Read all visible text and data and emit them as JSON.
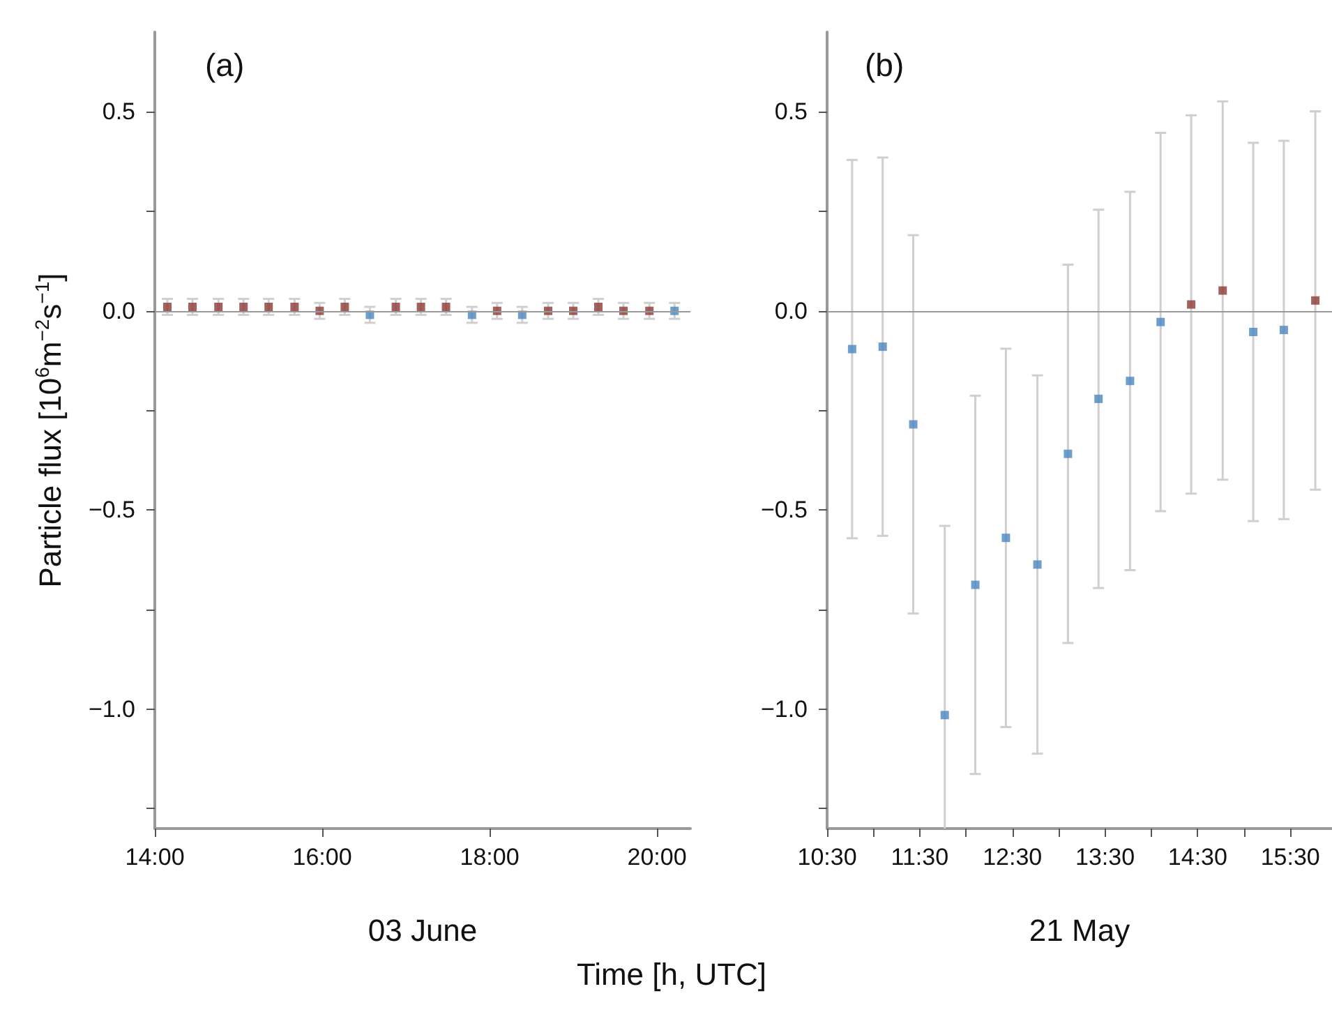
{
  "chart_data": [
    {
      "type": "scatter",
      "title": "(a)",
      "xlabel": "03 June",
      "ylabel": "Particle flux [10$^{6}$m$^{−2}$s$^{−1}$]",
      "series": [
        {
          "color": "#8b3a34",
          "x": [
            14.15,
            14.45,
            14.76,
            15.06,
            15.36,
            15.67,
            15.97,
            16.27,
            16.88,
            17.18,
            17.48,
            18.09,
            18.7,
            19.0,
            19.3,
            19.6,
            19.91
          ],
          "values": [
            0.01,
            0.01,
            0.01,
            0.01,
            0.01,
            0.01,
            0.0,
            0.01,
            0.01,
            0.01,
            0.01,
            0.0,
            0.0,
            0.0,
            0.01,
            0.0,
            0.0
          ],
          "errors": [
            0.02,
            0.02,
            0.02,
            0.02,
            0.02,
            0.02,
            0.02,
            0.02,
            0.02,
            0.02,
            0.02,
            0.02,
            0.02,
            0.02,
            0.02,
            0.02,
            0.02
          ]
        },
        {
          "color": "#4a86bf",
          "x": [
            16.57,
            17.79,
            18.39,
            20.21
          ],
          "values": [
            -0.01,
            -0.01,
            -0.01,
            0.0
          ],
          "errors": [
            0.02,
            0.02,
            0.02,
            0.02
          ]
        }
      ],
      "xlim": [
        14,
        20.4
      ],
      "xticks": [
        {
          "value": 14,
          "label": "14:00"
        },
        {
          "value": 16,
          "label": "16:00"
        },
        {
          "value": 18,
          "label": "18:00"
        },
        {
          "value": 20,
          "label": "20:00"
        }
      ],
      "ylim": [
        -1.3,
        0.7
      ],
      "yticks": [
        {
          "value": -1.25,
          "label": null
        },
        {
          "value": -1,
          "label": "−1.0"
        },
        {
          "value": -0.75,
          "label": null
        },
        {
          "value": -0.5,
          "label": "−0.5"
        },
        {
          "value": -0.25,
          "label": null
        },
        {
          "value": 0,
          "label": "0.0"
        },
        {
          "value": 0.25,
          "label": null
        },
        {
          "value": 0.5,
          "label": "0.5"
        }
      ],
      "ref_lines": [
        {
          "axis": "y",
          "value": 0,
          "color": "#999999"
        }
      ],
      "annotations": [
        "Time [h, UTC]"
      ],
      "marker": "square",
      "grid": false
    },
    {
      "type": "scatter",
      "title": "(b)",
      "xlabel": "21 May",
      "series": [
        {
          "color": "#4a86bf",
          "x": [
            10.77,
            11.1,
            11.43,
            11.77,
            12.1,
            12.43,
            12.77,
            13.1,
            13.43,
            13.77,
            14.1,
            15.1,
            15.43
          ],
          "values": [
            -0.096,
            -0.09,
            -0.285,
            -1.015,
            -0.688,
            -0.57,
            -0.637,
            -0.359,
            -0.221,
            -0.176,
            -0.028,
            -0.053,
            -0.048
          ],
          "errors": [
            0.475,
            0.475,
            0.475,
            0.475,
            0.475,
            0.475,
            0.475,
            0.475,
            0.475,
            0.475,
            0.475,
            0.475,
            0.475
          ]
        },
        {
          "color": "#8b3a34",
          "x": [
            14.43,
            14.77,
            15.77
          ],
          "values": [
            0.016,
            0.051,
            0.026
          ],
          "errors": [
            0.475,
            0.475,
            0.475
          ]
        }
      ],
      "xlim": [
        10.5,
        15.95
      ],
      "xticks": [
        {
          "value": 10.5,
          "label": "10:30"
        },
        {
          "value": 11,
          "label": null
        },
        {
          "value": 11.5,
          "label": "11:30"
        },
        {
          "value": 12,
          "label": null
        },
        {
          "value": 12.5,
          "label": "12:30"
        },
        {
          "value": 13,
          "label": null
        },
        {
          "value": 13.5,
          "label": "13:30"
        },
        {
          "value": 14,
          "label": null
        },
        {
          "value": 14.5,
          "label": "14:30"
        },
        {
          "value": 15,
          "label": null
        },
        {
          "value": 15.5,
          "label": "15:30"
        }
      ],
      "ylim": [
        -1.3,
        0.7
      ],
      "yticks": [
        {
          "value": -1.25,
          "label": null
        },
        {
          "value": -1,
          "label": "−1.0"
        },
        {
          "value": -0.75,
          "label": null
        },
        {
          "value": -0.5,
          "label": "−0.5"
        },
        {
          "value": -0.25,
          "label": null
        },
        {
          "value": 0,
          "label": "0.0"
        },
        {
          "value": 0.25,
          "label": null
        },
        {
          "value": 0.5,
          "label": "0.5"
        }
      ],
      "ref_lines": [
        {
          "axis": "y",
          "value": 0,
          "color": "#999999"
        }
      ],
      "marker": "square",
      "grid": false
    }
  ]
}
